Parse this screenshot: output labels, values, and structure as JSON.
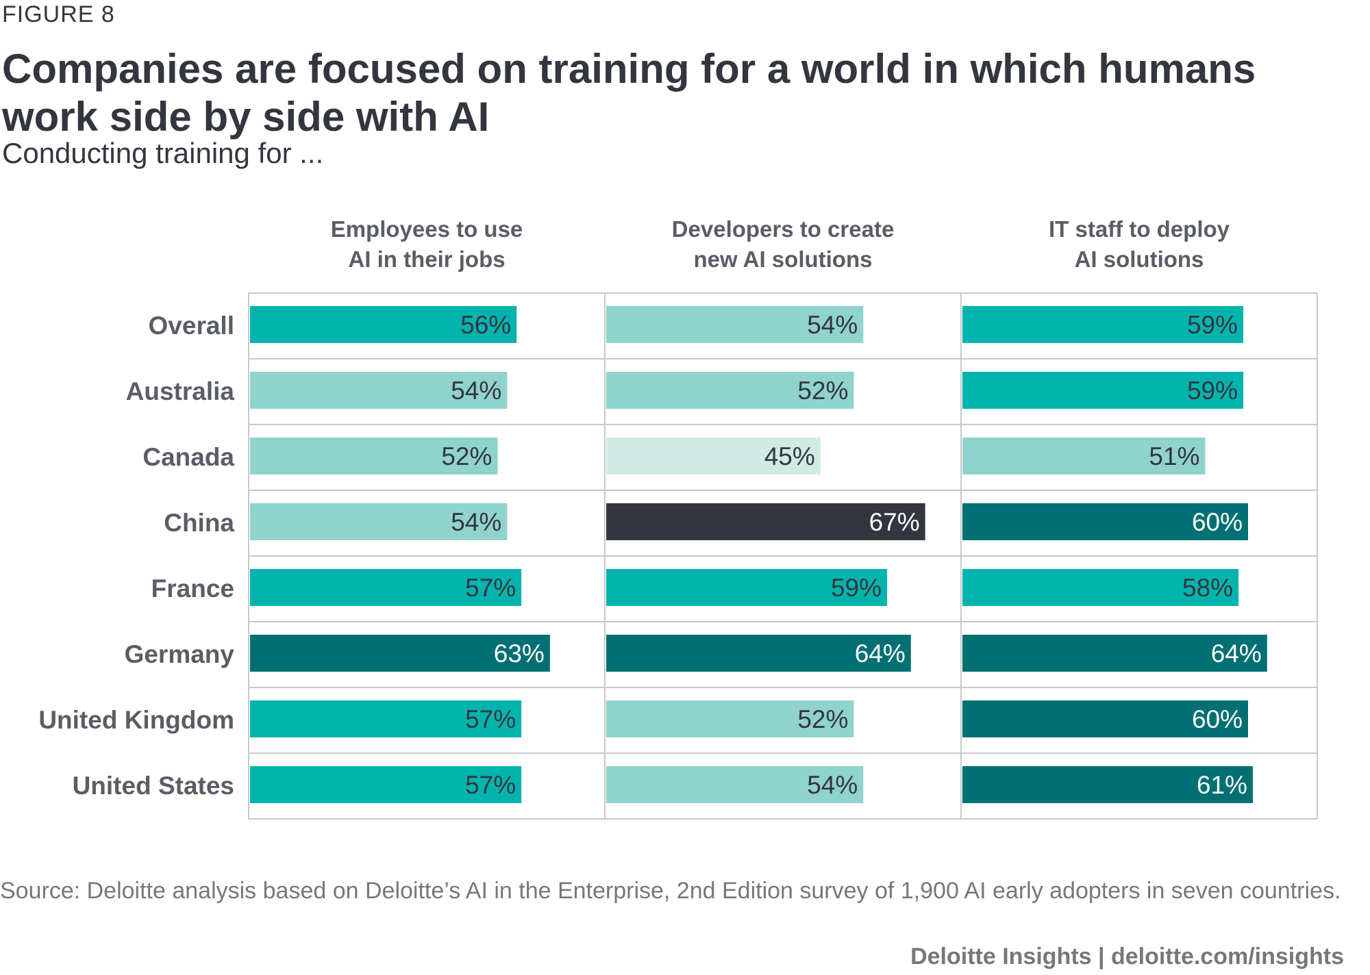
{
  "figure_label": "FIGURE 8",
  "title": "Companies are focused on training for a world in which humans work side by side with AI",
  "subtitle": "Conducting training for ...",
  "source": "Source: Deloitte analysis based on Deloitte’s AI in the Enterprise, 2nd Edition survey of 1,900 AI early adopters in seven countries.",
  "credit": "Deloitte Insights | deloitte.com/insights",
  "colors": {
    "very_light": "#d0ebe4",
    "light": "#8fd3cc",
    "teal": "#00b4ae",
    "dark_teal": "#007073",
    "charcoal": "#33353f",
    "grid": "#c8c8c8"
  },
  "chart_data": {
    "type": "bar",
    "orientation": "horizontal",
    "categories": [
      "Overall",
      "Australia",
      "Canada",
      "China",
      "France",
      "Germany",
      "United Kingdom",
      "United States"
    ],
    "series": [
      {
        "name": "Employees to use AI in their jobs",
        "name_lines": [
          "Employees to use",
          "AI in their jobs"
        ],
        "values": [
          56,
          54,
          52,
          54,
          57,
          63,
          57,
          57
        ],
        "labels": [
          "56%",
          "54%",
          "52%",
          "54%",
          "57%",
          "63%",
          "57%",
          "57%"
        ],
        "color_keys": [
          "teal",
          "light",
          "light",
          "light",
          "teal",
          "dark_teal",
          "teal",
          "teal"
        ]
      },
      {
        "name": "Developers to create new AI solutions",
        "name_lines": [
          "Developers to create",
          "new AI solutions"
        ],
        "values": [
          54,
          52,
          45,
          67,
          59,
          64,
          52,
          54
        ],
        "labels": [
          "54%",
          "52%",
          "45%",
          "67%",
          "59%",
          "64%",
          "52%",
          "54%"
        ],
        "color_keys": [
          "light",
          "light",
          "very_light",
          "charcoal",
          "teal",
          "dark_teal",
          "light",
          "light"
        ]
      },
      {
        "name": "IT staff to deploy AI solutions",
        "name_lines": [
          "IT staff to deploy",
          "AI solutions"
        ],
        "values": [
          59,
          59,
          51,
          60,
          58,
          64,
          60,
          61
        ],
        "labels": [
          "59%",
          "59%",
          "51%",
          "60%",
          "58%",
          "64%",
          "60%",
          "61%"
        ],
        "color_keys": [
          "teal",
          "teal",
          "light",
          "dark_teal",
          "teal",
          "dark_teal",
          "dark_teal",
          "dark_teal"
        ]
      }
    ],
    "xlim": [
      0,
      100
    ]
  }
}
